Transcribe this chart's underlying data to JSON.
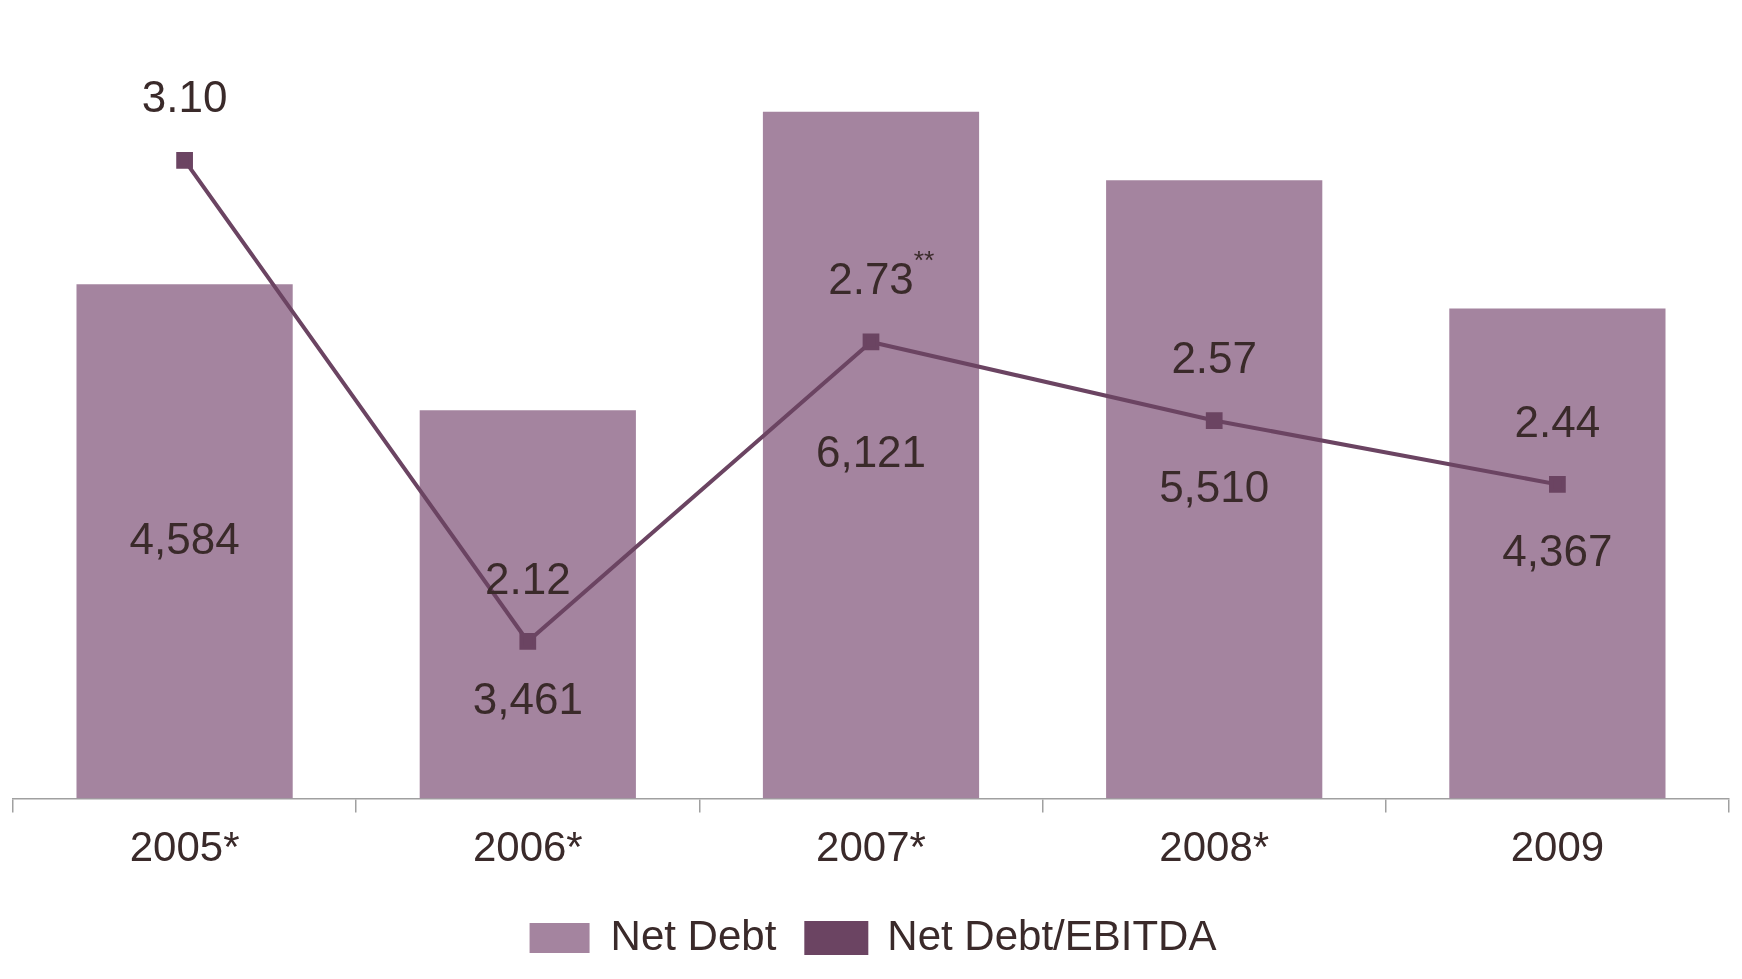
{
  "chart_data": {
    "type": "bar",
    "categories": [
      "2005*",
      "2006*",
      "2007*",
      "2008*",
      "2009"
    ],
    "series": [
      {
        "name": "Net Debt",
        "color": "#a4849f",
        "values": [
          4584,
          3461,
          6121,
          5510,
          4367
        ],
        "value_labels": [
          "4,584",
          "3,461",
          "6,121",
          "5,510",
          "4,367"
        ]
      },
      {
        "name": "Net Debt/EBITDA",
        "type": "line",
        "axis": "y2",
        "color": "#6b4462",
        "values": [
          3.1,
          2.12,
          2.73,
          2.57,
          2.44
        ],
        "value_labels": [
          "3.10",
          "2.12",
          "2.73$^{**}$",
          "2.57",
          "2.44"
        ]
      }
    ],
    "tick_labels": "x",
    "legend": "bottom",
    "marker": "square",
    "line_style": "solid",
    "grid": false
  }
}
